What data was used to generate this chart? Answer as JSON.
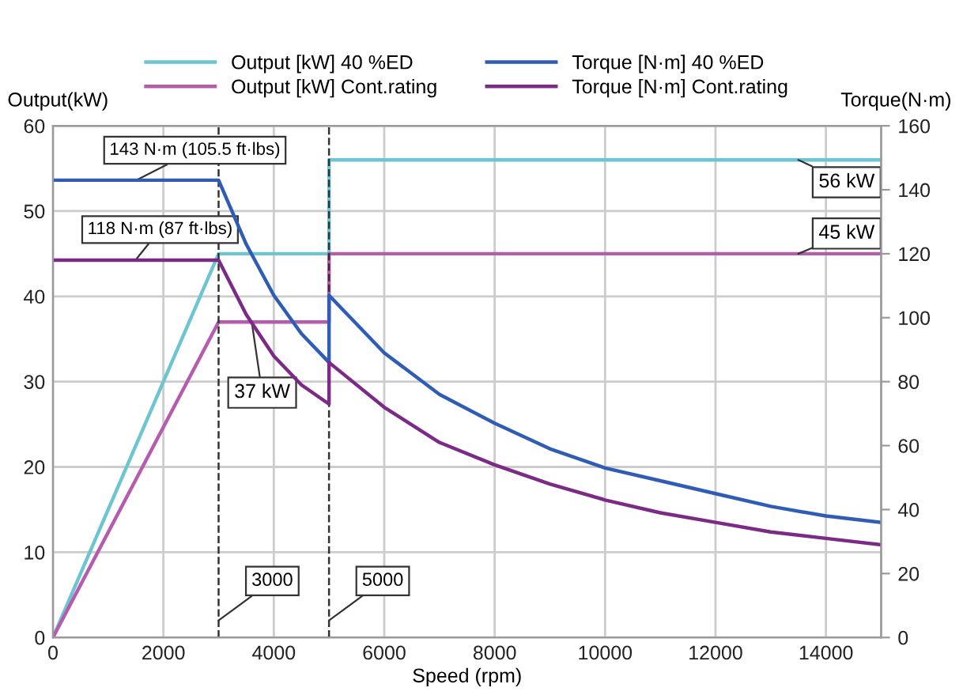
{
  "chart_data": {
    "type": "line",
    "xlabel": "Speed (rpm)",
    "ylabel": "Output(kW)",
    "y2label": "Torque(N·m)",
    "xlim": [
      0,
      15000
    ],
    "xticks": [
      0,
      2000,
      4000,
      6000,
      8000,
      10000,
      12000,
      14000
    ],
    "ylim": [
      0,
      60
    ],
    "yticks": [
      0,
      10,
      20,
      30,
      40,
      50,
      60
    ],
    "y2lim": [
      0,
      160
    ],
    "y2ticks": [
      0,
      20,
      40,
      60,
      80,
      100,
      120,
      140,
      160
    ],
    "grid": true,
    "legend": "top",
    "marker": "none",
    "line_style": "solid",
    "series": [
      {
        "name": "Output [kW] 40 %ED",
        "color": "#6cc5d1",
        "x": [
          0,
          3000,
          5000,
          5000,
          15000
        ],
        "values": [
          0,
          45,
          45,
          56,
          56
        ]
      },
      {
        "name": "Output [kW] Cont.rating",
        "color": "#b65cae",
        "x": [
          0,
          3000,
          5000,
          5000,
          15000
        ],
        "values": [
          0,
          37,
          37,
          45,
          45
        ]
      },
      {
        "name": "Torque [N·m] 40 %ED",
        "color": "#2f5cb4",
        "axis": "y2",
        "x": [
          0,
          3000,
          3500,
          4000,
          4500,
          5000,
          5000,
          6000,
          7000,
          8000,
          9000,
          10000,
          11000,
          12000,
          13000,
          14000,
          15000
        ],
        "values": [
          143,
          143,
          123,
          107,
          95,
          86,
          107,
          89,
          76,
          67,
          59,
          53,
          49,
          45,
          41,
          38,
          36
        ]
      },
      {
        "name": "Torque [N·m] Cont.rating",
        "color": "#7b2a86",
        "axis": "y2",
        "x": [
          0,
          3000,
          3500,
          4000,
          4500,
          5000,
          5000,
          6000,
          7000,
          8000,
          9000,
          10000,
          11000,
          12000,
          13000,
          14000,
          15000
        ],
        "values": [
          118,
          118,
          101,
          88,
          79,
          73,
          86,
          72,
          61,
          54,
          48,
          43,
          39,
          36,
          33,
          31,
          29
        ]
      }
    ],
    "ref_lines": [
      {
        "axis": "x",
        "value": 3000,
        "label": "3000",
        "color": "#333333",
        "line_style": "dashed"
      },
      {
        "axis": "x",
        "value": 5000,
        "label": "5000",
        "color": "#333333",
        "line_style": "dashed"
      }
    ],
    "annotations": [
      {
        "text": "143 N·m (105.5 ft·lbs)",
        "x": 1500,
        "y": 53.6
      },
      {
        "text": "118 N·m (87 ft·lbs)",
        "x": 1500,
        "y": 44.3
      },
      {
        "text": "37 kW",
        "x": 3600,
        "y": 37
      },
      {
        "text": "56 kW",
        "x": 13500,
        "y": 56
      },
      {
        "text": "45 kW",
        "x": 13500,
        "y": 45
      }
    ]
  }
}
